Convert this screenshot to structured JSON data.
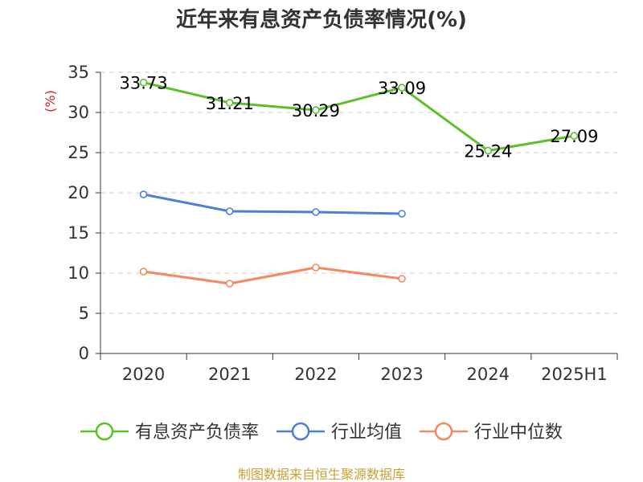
{
  "chart_data": {
    "type": "line",
    "title": "近年来有息资产负债率情况(%)",
    "ylabel": "(%)",
    "xlabel": "",
    "categories": [
      "2020",
      "2021",
      "2022",
      "2023",
      "2024",
      "2025H1"
    ],
    "ylim": [
      0,
      35
    ],
    "yticks": [
      0,
      5,
      10,
      15,
      20,
      25,
      30,
      35
    ],
    "grid": true,
    "legend_position": "bottom",
    "series": [
      {
        "name": "有息资产负债率",
        "color": "#5cc02a",
        "values": [
          33.73,
          31.21,
          30.29,
          33.09,
          25.24,
          27.09
        ],
        "labels": [
          "33.73",
          "31.21",
          "30.29",
          "33.09",
          "25.24",
          "27.09"
        ],
        "show_labels": true
      },
      {
        "name": "行业均值",
        "color": "#4e7fd8",
        "values": [
          19.8,
          17.7,
          17.6,
          17.4,
          null,
          null
        ],
        "show_labels": false
      },
      {
        "name": "行业中位数",
        "color": "#f4895f",
        "values": [
          10.2,
          8.7,
          10.7,
          9.3,
          null,
          null
        ],
        "show_labels": false
      }
    ]
  },
  "footer": {
    "source": "制图数据来自恒生聚源数据库",
    "source_color": "#c9a233"
  },
  "colors": {
    "ylabel": "#cc2222",
    "axis": "#333333"
  }
}
